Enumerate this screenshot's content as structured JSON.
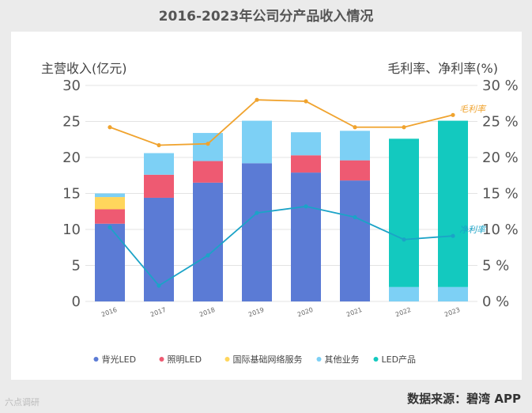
{
  "title": "2016-2023年公司分产品收入情况",
  "source": "数据来源：碧湾 APP",
  "brand": "六点调研",
  "chart_data": {
    "type": "bar",
    "categories": [
      "2016",
      "2017",
      "2018",
      "2019",
      "2020",
      "2021",
      "2022",
      "2023"
    ],
    "ylabel": "主营收入(亿元)",
    "y2label": "毛利率、净利率(%)",
    "ylim": [
      0,
      30
    ],
    "y2lim": [
      0,
      30
    ],
    "yticks": [
      "0",
      "5",
      "10",
      "15",
      "20",
      "25",
      "30"
    ],
    "y2ticks": [
      "0 %",
      "5 %",
      "10 %",
      "15 %",
      "20 %",
      "25 %",
      "30 %"
    ],
    "grid": true,
    "legend_position": "bottom",
    "series": [
      {
        "name": "背光LED",
        "type": "bar",
        "color": "#5b7bd5",
        "values": [
          10.8,
          14.4,
          16.5,
          19.2,
          17.9,
          16.8,
          0,
          0
        ]
      },
      {
        "name": "照明LED",
        "type": "bar",
        "color": "#ee5a72",
        "values": [
          2.0,
          3.2,
          3.0,
          0,
          2.4,
          2.8,
          0,
          0
        ]
      },
      {
        "name": "国际基础网络服务",
        "type": "bar",
        "color": "#ffd65c",
        "values": [
          1.7,
          0,
          0,
          0,
          0,
          0,
          0,
          0
        ]
      },
      {
        "name": "其他业务",
        "type": "bar",
        "color": "#7dd0f5",
        "values": [
          0.5,
          3.0,
          3.9,
          5.9,
          3.2,
          4.1,
          2.0,
          2.0
        ]
      },
      {
        "name": "LED产品",
        "type": "bar",
        "color": "#13c9bf",
        "values": [
          0,
          0,
          0,
          0,
          0,
          0,
          20.6,
          23.1
        ]
      }
    ],
    "lines": [
      {
        "name": "毛利率",
        "color": "#f0a32e",
        "values": [
          24.2,
          21.7,
          21.9,
          28.0,
          27.8,
          24.2,
          24.2,
          25.9
        ]
      },
      {
        "name": "净利率",
        "color": "#1ba3c7",
        "values": [
          10.3,
          2.2,
          6.4,
          12.3,
          13.2,
          11.7,
          8.6,
          9.1
        ]
      }
    ]
  }
}
